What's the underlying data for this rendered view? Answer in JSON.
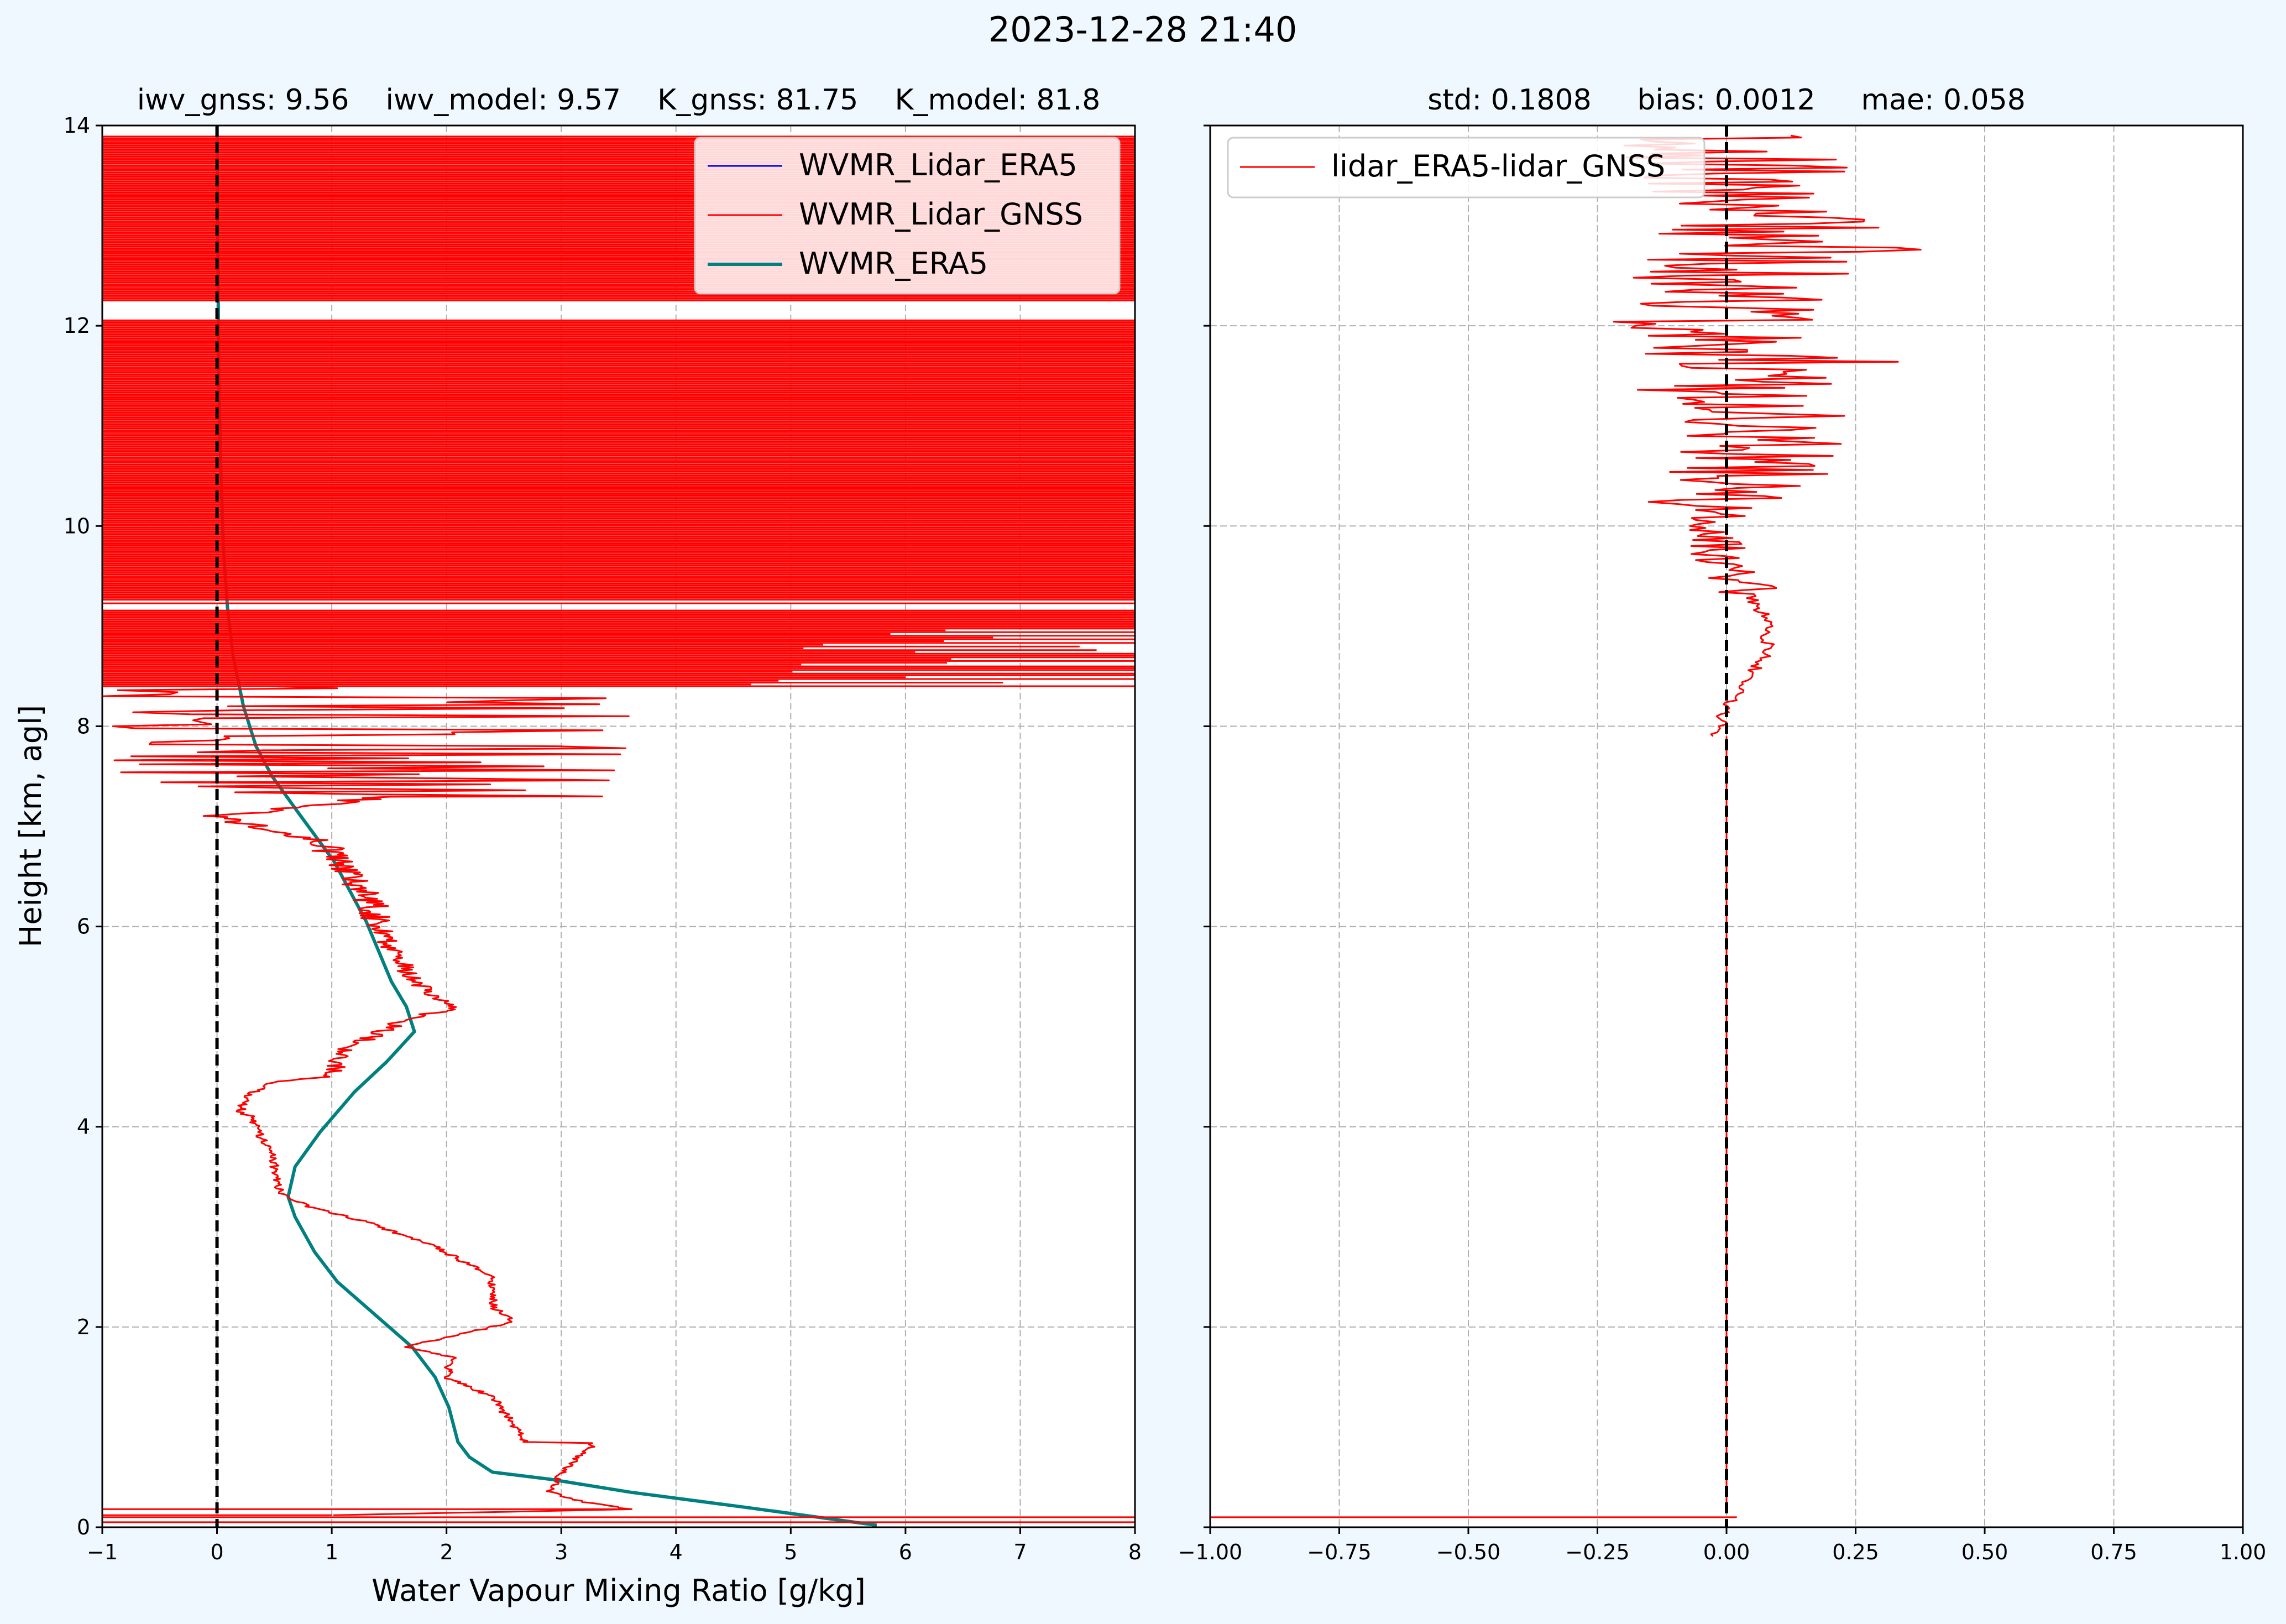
{
  "suptitle": "2023-12-28 21:40",
  "colors": {
    "background": "#eff7ff",
    "lidar_era5": "#0000ff",
    "lidar_gnss": "#ff0000",
    "era5": "#008080",
    "diff": "#ff0000",
    "grid": "#b0b0b0",
    "zero_line": "#000000"
  },
  "chart_data": [
    {
      "type": "line",
      "title": "iwv_gnss: 9.56    iwv_model: 9.57    K_gnss: 81.75    K_model: 81.8",
      "xlabel": "Water Vapour Mixing Ratio [g/kg]",
      "ylabel": "Height [km, agl]",
      "xlim": [
        -1,
        8
      ],
      "ylim": [
        0,
        14
      ],
      "xticks": [
        "−1",
        "0",
        "1",
        "2",
        "3",
        "4",
        "5",
        "6",
        "7",
        "8"
      ],
      "yticks": [
        "0",
        "2",
        "4",
        "6",
        "8",
        "10",
        "12",
        "14"
      ],
      "grid": true,
      "legend": "top-right",
      "reference_line_x": 0,
      "series": [
        {
          "name": "WVMR_Lidar_ERA5",
          "color": "#0000ff",
          "style": "hidden",
          "x": [],
          "y": []
        },
        {
          "name": "WVMR_Lidar_GNSS",
          "color": "#ff0000",
          "style": "noisy-profile",
          "x": [
            -1,
            8,
            1.0,
            3.6,
            3.2,
            2.9,
            3.0,
            3.3,
            2.7,
            2.6,
            2.4,
            2.0,
            2.05,
            1.65,
            2.0,
            2.6,
            2.4,
            2.4,
            2.15,
            1.9,
            1.3,
            0.8,
            0.55,
            0.5,
            0.45,
            0.35,
            0.3,
            0.2,
            0.25,
            0.5,
            1.0,
            1.1,
            1.6,
            2.1,
            1.85,
            1.7,
            1.5,
            1.4,
            1.25,
            1.1,
            0.9,
            0.5,
            0.0,
            1.5,
            0.3,
            0.7,
            3.3,
            -0.5,
            3.0,
            -1.0,
            5.5,
            8.0,
            8.0,
            8.0,
            8.0
          ],
          "y": [
            0.05,
            0.1,
            0.12,
            0.18,
            0.25,
            0.35,
            0.55,
            0.85,
            0.85,
            1.0,
            1.3,
            1.5,
            1.7,
            1.8,
            1.9,
            2.05,
            2.2,
            2.5,
            2.65,
            2.8,
            3.05,
            3.2,
            3.35,
            3.6,
            3.8,
            3.95,
            4.1,
            4.15,
            4.3,
            4.45,
            4.5,
            4.75,
            5.05,
            5.2,
            5.3,
            5.5,
            5.8,
            6.1,
            6.4,
            6.6,
            6.85,
            6.95,
            7.1,
            7.3,
            7.45,
            7.6,
            7.75,
            7.9,
            8.05,
            8.15,
            8.3,
            8.45,
            9.5,
            11.0,
            13.9
          ]
        },
        {
          "name": "WVMR_ERA5",
          "color": "#008080",
          "style": "line",
          "x": [
            5.75,
            4.6,
            3.6,
            2.9,
            2.4,
            2.2,
            2.1,
            2.02,
            1.9,
            1.7,
            1.4,
            1.05,
            0.85,
            0.68,
            0.62,
            0.68,
            0.9,
            1.2,
            1.48,
            1.72,
            1.65,
            1.52,
            1.3,
            1.02,
            0.7,
            0.48,
            0.34,
            0.23,
            0.14,
            0.09,
            0.055,
            0.035,
            0.015,
            0.0
          ],
          "y": [
            0.02,
            0.2,
            0.35,
            0.48,
            0.55,
            0.7,
            0.85,
            1.2,
            1.5,
            1.8,
            2.1,
            2.45,
            2.75,
            3.1,
            3.3,
            3.6,
            3.95,
            4.35,
            4.65,
            4.95,
            5.2,
            5.45,
            6.05,
            6.65,
            7.15,
            7.5,
            7.8,
            8.2,
            8.7,
            9.2,
            9.8,
            10.5,
            11.5,
            14.0
          ]
        }
      ]
    },
    {
      "type": "line",
      "title": "std: 0.1808     bias: 0.0012     mae: 0.058",
      "xlabel": "",
      "ylabel": "",
      "xlim": [
        -1.0,
        1.0
      ],
      "ylim": [
        0,
        14
      ],
      "xticks": [
        "−1.00",
        "−0.75",
        "−0.50",
        "−0.25",
        "0.00",
        "0.25",
        "0.50",
        "0.75",
        "1.00"
      ],
      "yticks": [
        "",
        "",
        "",
        "",
        "",
        "",
        "",
        ""
      ],
      "grid": true,
      "legend": "top-left",
      "reference_line_x": 0,
      "series": [
        {
          "name": "lidar_ERA5-lidar_GNSS",
          "color": "#ff0000",
          "style": "difference-profile",
          "x": [
            -1.0,
            0.02,
            0.0,
            0.0,
            0.0,
            0.01,
            0.0,
            0.02,
            0.0,
            -0.01,
            0.08,
            0.0,
            -0.02,
            0.05,
            -0.05,
            0.03,
            -0.1,
            0.05,
            -0.13,
            0.22,
            -0.22,
            0.25,
            -0.28,
            0.35,
            -0.33,
            0.45,
            -0.25,
            0.55,
            -0.38,
            0.4,
            -0.2,
            0.3,
            -0.07,
            0.15
          ],
          "y": [
            0.1,
            0.1,
            0.2,
            7.9,
            8.0,
            8.3,
            8.4,
            8.5,
            8.8,
            8.9,
            9.1,
            9.2,
            9.4,
            9.6,
            9.75,
            9.9,
            10.0,
            10.1,
            10.4,
            10.6,
            10.8,
            11.0,
            11.3,
            11.65,
            11.8,
            12.0,
            12.2,
            12.3,
            12.65,
            12.75,
            13.0,
            13.3,
            13.6,
            13.85
          ]
        }
      ]
    }
  ]
}
